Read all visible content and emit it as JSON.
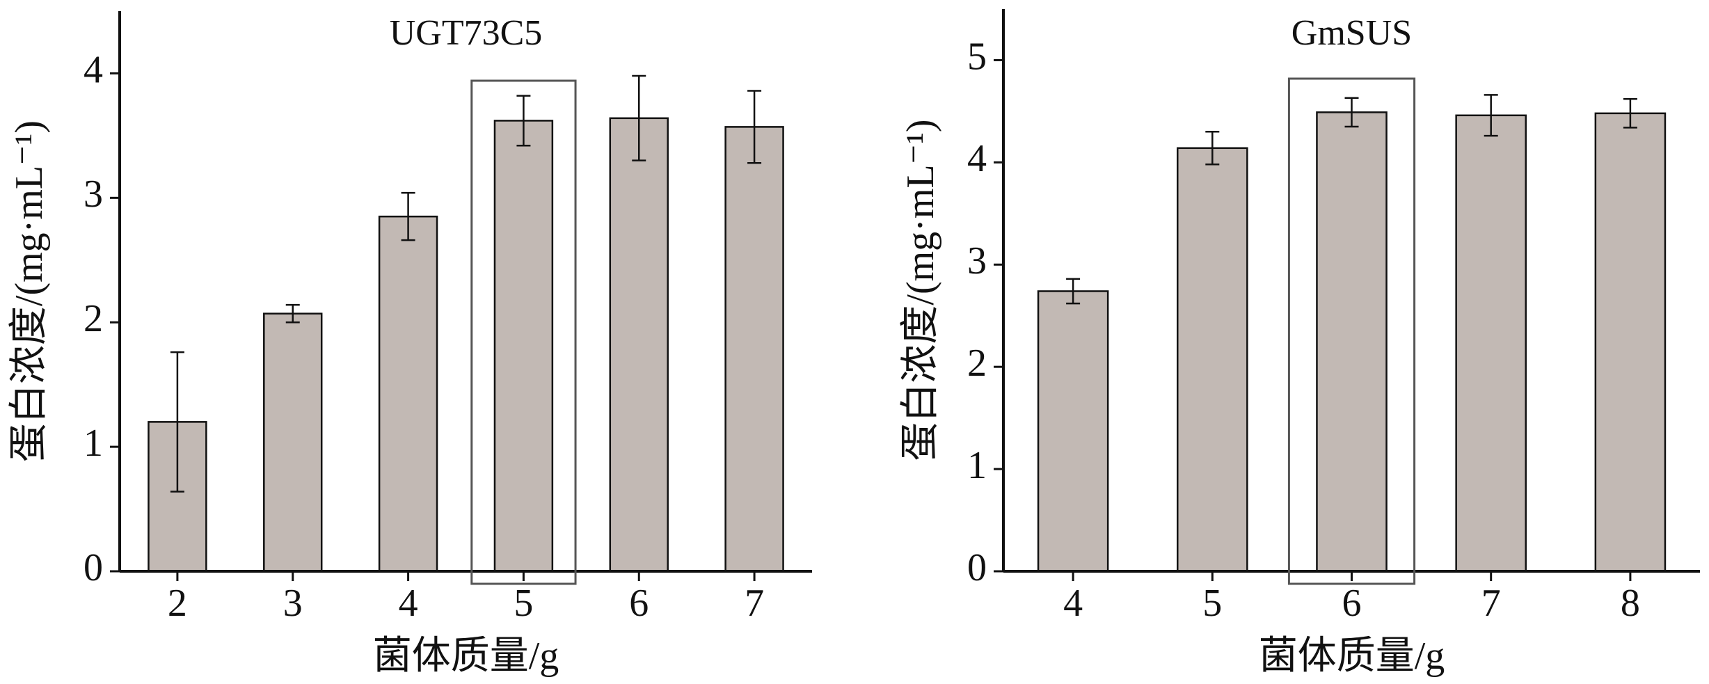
{
  "chart_data": [
    {
      "type": "bar",
      "title": "UGT73C5",
      "x_label": "菌体质量/g",
      "y_label": "蛋白浓度/(mg·mL⁻¹)",
      "categories": [
        "2",
        "3",
        "4",
        "5",
        "6",
        "7"
      ],
      "values": [
        1.2,
        2.07,
        2.85,
        3.62,
        3.64,
        3.57
      ],
      "errors": [
        0.56,
        0.07,
        0.19,
        0.2,
        0.34,
        0.29
      ],
      "color": "#c2b9b4",
      "ylim": [
        0,
        4.5
      ],
      "yticks": [
        0,
        1,
        2,
        3,
        4
      ],
      "highlight": "5"
    },
    {
      "type": "bar",
      "title": "GmSUS",
      "x_label": "菌体质量/g",
      "y_label": "蛋白浓度/(mg·mL⁻¹)",
      "categories": [
        "4",
        "5",
        "6",
        "7",
        "8"
      ],
      "values": [
        2.74,
        4.14,
        4.49,
        4.46,
        4.48
      ],
      "errors": [
        0.12,
        0.16,
        0.14,
        0.2,
        0.14
      ],
      "color": "#c2b9b4",
      "ylim": [
        0,
        5.5
      ],
      "yticks": [
        0,
        1,
        2,
        3,
        4,
        5
      ],
      "highlight": "6"
    }
  ]
}
